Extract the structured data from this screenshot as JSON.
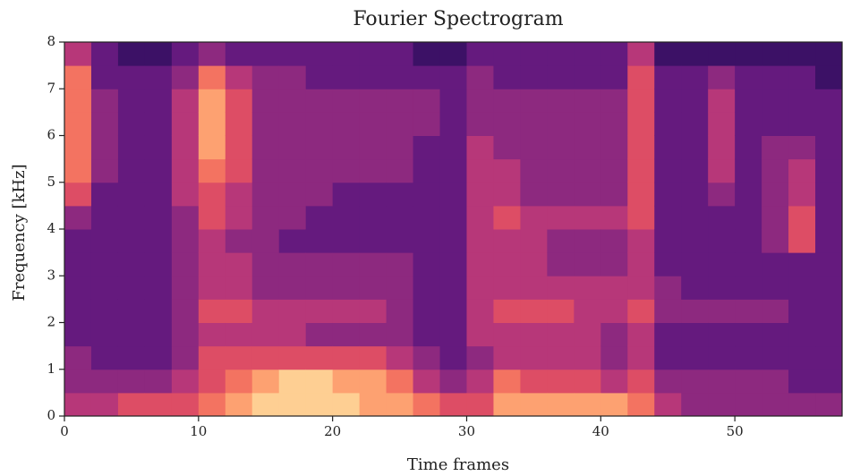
{
  "chart_data": {
    "type": "heatmap",
    "title": "Fourier Spectrogram",
    "xlabel": "Time frames",
    "ylabel": "Frequency [kHz]",
    "colormap": "magma",
    "zlim": [
      0,
      10
    ],
    "xlim": [
      0,
      58
    ],
    "xticks": [
      0,
      10,
      20,
      30,
      40,
      50
    ],
    "ylim": [
      0,
      8
    ],
    "yticks": [
      0,
      1,
      2,
      3,
      4,
      5,
      6,
      7,
      8
    ],
    "x_edges": [
      0,
      2,
      4,
      6,
      8,
      10,
      12,
      14,
      16,
      18,
      20,
      22,
      24,
      26,
      28,
      30,
      32,
      34,
      36,
      38,
      40,
      42,
      44,
      46,
      48,
      50,
      52,
      54,
      56,
      58
    ],
    "y_edges": [
      0,
      0.5,
      1,
      1.5,
      2,
      2.5,
      3,
      3.5,
      4,
      4.5,
      5,
      5.5,
      6,
      6.5,
      7,
      7.5,
      8
    ],
    "z": [
      [
        5,
        4,
        4,
        3,
        3,
        3,
        3,
        3,
        4,
        6,
        7,
        7,
        7,
        7,
        7,
        5
      ],
      [
        5,
        4,
        3,
        3,
        3,
        3,
        3,
        3,
        3,
        3,
        4,
        4,
        4,
        4,
        3,
        3
      ],
      [
        6,
        4,
        3,
        3,
        3,
        3,
        3,
        3,
        3,
        3,
        3,
        3,
        3,
        3,
        3,
        2
      ],
      [
        6,
        4,
        3,
        3,
        3,
        3,
        3,
        3,
        3,
        3,
        3,
        3,
        3,
        3,
        3,
        2
      ],
      [
        6,
        5,
        4,
        4,
        4,
        4,
        4,
        4,
        4,
        5,
        5,
        5,
        5,
        5,
        4,
        3
      ],
      [
        7,
        6,
        6,
        5,
        6,
        5,
        5,
        5,
        6,
        6,
        7,
        8,
        8,
        8,
        7,
        4
      ],
      [
        8,
        7,
        6,
        5,
        6,
        5,
        5,
        4,
        5,
        5,
        6,
        6,
        6,
        6,
        5,
        3
      ],
      [
        9,
        8,
        6,
        5,
        5,
        4,
        4,
        4,
        4,
        4,
        4,
        4,
        4,
        4,
        4,
        3
      ],
      [
        9,
        9,
        6,
        5,
        5,
        4,
        4,
        3,
        4,
        4,
        4,
        4,
        4,
        4,
        4,
        3
      ],
      [
        9,
        9,
        6,
        4,
        5,
        4,
        4,
        3,
        3,
        4,
        4,
        4,
        4,
        4,
        3,
        3
      ],
      [
        9,
        8,
        6,
        4,
        5,
        4,
        4,
        3,
        3,
        3,
        4,
        4,
        4,
        4,
        3,
        3
      ],
      [
        8,
        8,
        6,
        4,
        5,
        4,
        4,
        3,
        3,
        3,
        4,
        4,
        4,
        4,
        3,
        3
      ],
      [
        8,
        7,
        5,
        4,
        4,
        4,
        4,
        3,
        3,
        3,
        4,
        4,
        4,
        4,
        3,
        3
      ],
      [
        7,
        5,
        4,
        3,
        3,
        3,
        3,
        3,
        3,
        3,
        3,
        3,
        4,
        4,
        3,
        2
      ],
      [
        6,
        4,
        3,
        3,
        3,
        3,
        3,
        3,
        3,
        3,
        3,
        3,
        3,
        3,
        3,
        2
      ],
      [
        6,
        5,
        4,
        5,
        5,
        5,
        5,
        5,
        5,
        5,
        5,
        5,
        4,
        4,
        4,
        3
      ],
      [
        8,
        7,
        5,
        5,
        6,
        5,
        5,
        5,
        6,
        5,
        5,
        4,
        4,
        4,
        3,
        3
      ],
      [
        8,
        6,
        5,
        5,
        6,
        5,
        5,
        5,
        5,
        4,
        4,
        4,
        4,
        4,
        3,
        3
      ],
      [
        8,
        6,
        5,
        5,
        6,
        5,
        4,
        4,
        5,
        4,
        4,
        4,
        4,
        4,
        3,
        3
      ],
      [
        8,
        6,
        5,
        5,
        5,
        5,
        4,
        4,
        5,
        4,
        4,
        4,
        4,
        4,
        3,
        3
      ],
      [
        8,
        5,
        4,
        4,
        5,
        5,
        4,
        4,
        5,
        4,
        4,
        4,
        4,
        4,
        3,
        3
      ],
      [
        7,
        6,
        5,
        5,
        6,
        5,
        5,
        5,
        6,
        6,
        6,
        6,
        6,
        6,
        6,
        5
      ],
      [
        5,
        4,
        3,
        3,
        4,
        4,
        3,
        3,
        3,
        3,
        3,
        3,
        3,
        3,
        3,
        2
      ],
      [
        4,
        4,
        3,
        3,
        4,
        3,
        3,
        3,
        3,
        3,
        3,
        3,
        3,
        3,
        3,
        2
      ],
      [
        4,
        4,
        3,
        3,
        4,
        3,
        3,
        3,
        3,
        4,
        5,
        5,
        5,
        5,
        4,
        2
      ],
      [
        4,
        4,
        3,
        3,
        4,
        3,
        3,
        3,
        3,
        3,
        3,
        3,
        3,
        3,
        3,
        2
      ],
      [
        4,
        4,
        3,
        3,
        4,
        3,
        3,
        4,
        4,
        4,
        4,
        4,
        3,
        3,
        3,
        2
      ],
      [
        4,
        3,
        3,
        3,
        3,
        3,
        3,
        6,
        6,
        5,
        5,
        4,
        3,
        3,
        3,
        2
      ],
      [
        4,
        3,
        3,
        3,
        3,
        3,
        3,
        3,
        3,
        3,
        3,
        3,
        3,
        3,
        2,
        2
      ]
    ]
  }
}
